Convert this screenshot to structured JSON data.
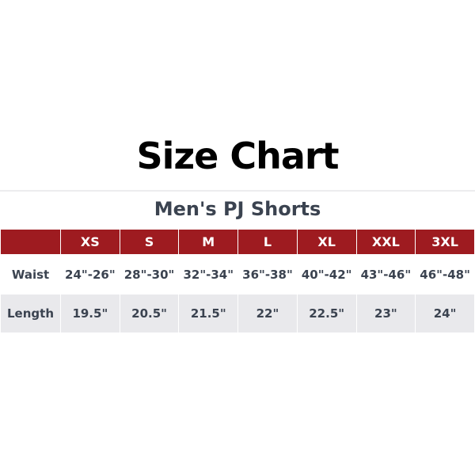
{
  "title": "Size Chart",
  "subtitle": "Men's PJ Shorts",
  "colors": {
    "header_bg": "#9e1b20",
    "alt_row_bg": "#e9e9ec",
    "text": "#3b4350"
  },
  "table": {
    "headers": [
      "",
      "XS",
      "S",
      "M",
      "L",
      "XL",
      "XXL",
      "3XL"
    ],
    "rows": [
      {
        "label": "Waist",
        "values": [
          "24\"-26\"",
          "28\"-30\"",
          "32\"-34\"",
          "36\"-38\"",
          "40\"-42\"",
          "43\"-46\"",
          "46\"-48\""
        ]
      },
      {
        "label": "Length",
        "values": [
          "19.5\"",
          "20.5\"",
          "21.5\"",
          "22\"",
          "22.5\"",
          "23\"",
          "24\""
        ]
      }
    ]
  }
}
